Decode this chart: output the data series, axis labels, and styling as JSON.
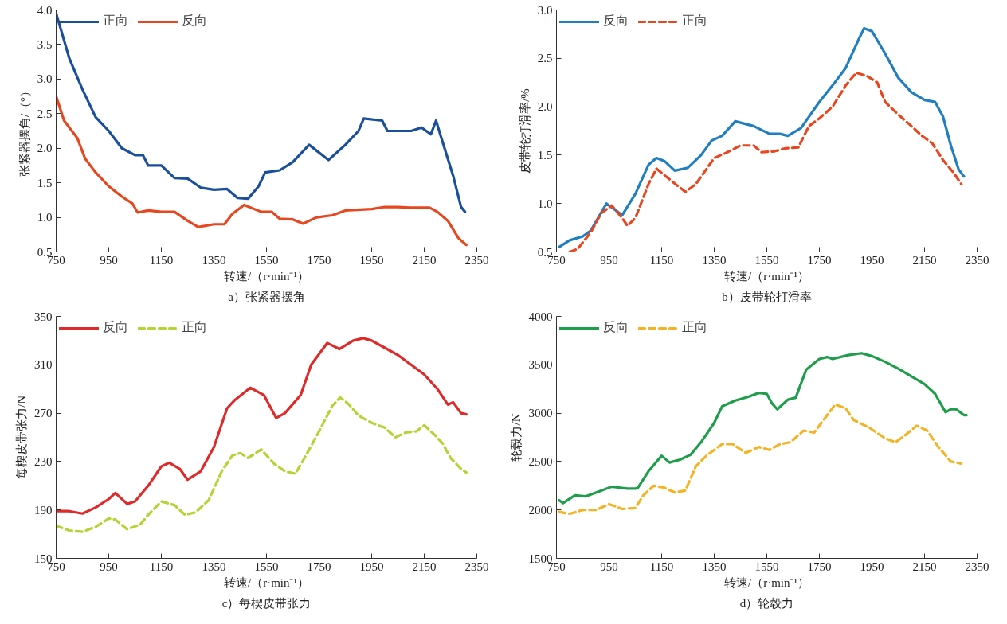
{
  "chart_data": [
    {
      "type": "line",
      "title": "a）张紧器摆角",
      "xlabel": "转速/（r·min⁻¹）",
      "ylabel": "张紧器摆角/（°）",
      "xlim": [
        750,
        2350
      ],
      "xticks": [
        750,
        950,
        1150,
        1350,
        1550,
        1750,
        1950,
        2150,
        2350
      ],
      "ylim": [
        0.5,
        4.0
      ],
      "yticks": [
        {
          "value": 0.5,
          "label": "0.5"
        },
        {
          "value": 1.0,
          "label": "1.0"
        },
        {
          "value": 1.5,
          "label": "1.5"
        },
        {
          "value": 2.0,
          "label": "2.0"
        },
        {
          "value": 2.5,
          "label": "2.5"
        },
        {
          "value": 3.0,
          "label": "3.0"
        },
        {
          "value": 3.5,
          "label": "3.5"
        },
        {
          "value": 4.0,
          "label": "4.0"
        }
      ],
      "grid": false,
      "legend": "top left",
      "series": [
        {
          "name": "正向",
          "color": "#1a4f9c",
          "line_style": "solid",
          "x": [
            750,
            800,
            850,
            900,
            950,
            1000,
            1050,
            1080,
            1100,
            1150,
            1200,
            1250,
            1300,
            1350,
            1400,
            1440,
            1480,
            1520,
            1545,
            1600,
            1650,
            1700,
            1712,
            1786,
            1850,
            1900,
            1920,
            1990,
            2010,
            2060,
            2100,
            2140,
            2175,
            2195,
            2215,
            2260,
            2290,
            2305
          ],
          "values": [
            3.95,
            3.3,
            2.85,
            2.45,
            2.25,
            2.0,
            1.9,
            1.9,
            1.75,
            1.75,
            1.57,
            1.56,
            1.43,
            1.4,
            1.41,
            1.28,
            1.27,
            1.45,
            1.65,
            1.68,
            1.8,
            2.0,
            2.05,
            1.83,
            2.05,
            2.25,
            2.43,
            2.4,
            2.25,
            2.25,
            2.25,
            2.3,
            2.2,
            2.4,
            2.15,
            1.6,
            1.15,
            1.08
          ]
        },
        {
          "name": "反向",
          "color": "#e8461e",
          "line_style": "solid",
          "x": [
            750,
            780,
            830,
            860,
            900,
            950,
            1000,
            1040,
            1060,
            1100,
            1150,
            1200,
            1250,
            1290,
            1350,
            1390,
            1420,
            1465,
            1530,
            1570,
            1600,
            1650,
            1690,
            1740,
            1800,
            1850,
            1950,
            2000,
            2050,
            2100,
            2170,
            2200,
            2240,
            2280,
            2310
          ],
          "values": [
            2.75,
            2.4,
            2.15,
            1.85,
            1.65,
            1.45,
            1.3,
            1.2,
            1.07,
            1.1,
            1.08,
            1.08,
            0.95,
            0.86,
            0.9,
            0.9,
            1.05,
            1.18,
            1.08,
            1.08,
            0.98,
            0.97,
            0.91,
            1.0,
            1.03,
            1.1,
            1.12,
            1.15,
            1.15,
            1.14,
            1.14,
            1.08,
            0.95,
            0.7,
            0.6
          ]
        }
      ]
    },
    {
      "type": "line",
      "title": "b）皮带轮打滑率",
      "xlabel": "转速/（r·min⁻¹）",
      "ylabel": "皮带轮打滑率/%",
      "xlim": [
        750,
        2350
      ],
      "xticks": [
        750,
        950,
        1150,
        1350,
        1550,
        1750,
        1950,
        2150,
        2350
      ],
      "ylim": [
        0.5,
        3.0
      ],
      "yticks": [
        {
          "value": 0.5,
          "label": "0.5"
        },
        {
          "value": 1.0,
          "label": "1.0"
        },
        {
          "value": 1.5,
          "label": "1.5"
        },
        {
          "value": 2.0,
          "label": "2.0"
        },
        {
          "value": 2.5,
          "label": "2.5"
        },
        {
          "value": 3.0,
          "label": "3.0"
        }
      ],
      "grid": false,
      "legend": "top left",
      "series": [
        {
          "name": "反向",
          "color": "#1f7fc0",
          "line_style": "solid",
          "x": [
            760,
            800,
            850,
            880,
            940,
            1000,
            1050,
            1100,
            1130,
            1160,
            1200,
            1250,
            1300,
            1340,
            1380,
            1430,
            1500,
            1560,
            1600,
            1630,
            1680,
            1750,
            1800,
            1850,
            1900,
            1920,
            1950,
            2000,
            2050,
            2100,
            2150,
            2190,
            2220,
            2250,
            2280,
            2300
          ],
          "values": [
            0.55,
            0.62,
            0.66,
            0.72,
            1.0,
            0.88,
            1.1,
            1.4,
            1.47,
            1.44,
            1.34,
            1.37,
            1.5,
            1.65,
            1.7,
            1.85,
            1.8,
            1.72,
            1.72,
            1.7,
            1.78,
            2.05,
            2.22,
            2.4,
            2.7,
            2.81,
            2.78,
            2.55,
            2.3,
            2.15,
            2.07,
            2.05,
            1.9,
            1.6,
            1.35,
            1.28
          ]
        },
        {
          "name": "正向",
          "color": "#e8461e",
          "line_style": "dashed",
          "x": [
            800,
            830,
            880,
            920,
            960,
            1000,
            1020,
            1050,
            1100,
            1130,
            1180,
            1240,
            1280,
            1350,
            1400,
            1450,
            1500,
            1530,
            1580,
            1620,
            1670,
            1710,
            1750,
            1800,
            1850,
            1890,
            1930,
            1970,
            2000,
            2050,
            2100,
            2140,
            2180,
            2220,
            2260,
            2290
          ],
          "values": [
            0.5,
            0.53,
            0.7,
            0.9,
            0.98,
            0.85,
            0.77,
            0.85,
            1.2,
            1.36,
            1.25,
            1.12,
            1.2,
            1.47,
            1.53,
            1.6,
            1.6,
            1.53,
            1.54,
            1.57,
            1.58,
            1.8,
            1.88,
            2.0,
            2.22,
            2.35,
            2.32,
            2.25,
            2.05,
            1.92,
            1.8,
            1.7,
            1.62,
            1.45,
            1.32,
            1.2
          ]
        }
      ]
    },
    {
      "type": "line",
      "title": "c）每楔皮带张力",
      "xlabel": "转速/（r·min⁻¹）",
      "ylabel": "每楔皮带张力/N",
      "xlim": [
        750,
        2350
      ],
      "xticks": [
        750,
        950,
        1150,
        1350,
        1550,
        1750,
        1950,
        2150,
        2350
      ],
      "ylim": [
        150,
        350
      ],
      "yticks": [
        150,
        190,
        230,
        270,
        310,
        350
      ],
      "grid": false,
      "legend": "top left",
      "series": [
        {
          "name": "反向",
          "color": "#e02a2a",
          "line_style": "solid",
          "x": [
            750,
            800,
            850,
            900,
            950,
            975,
            1020,
            1050,
            1100,
            1150,
            1180,
            1220,
            1250,
            1300,
            1350,
            1400,
            1430,
            1488,
            1540,
            1587,
            1620,
            1680,
            1720,
            1781,
            1827,
            1880,
            1918,
            1950,
            2000,
            2050,
            2100,
            2150,
            2200,
            2240,
            2260,
            2290,
            2310
          ],
          "values": [
            189,
            189,
            187,
            192,
            199,
            204,
            195,
            197,
            210,
            226,
            229,
            224,
            215,
            222,
            242,
            274,
            281,
            291,
            285,
            266,
            270,
            285,
            310,
            328,
            323,
            330,
            332,
            330,
            324,
            318,
            310,
            302,
            290,
            277,
            279,
            270,
            269
          ]
        },
        {
          "name": "正向",
          "color": "#b5d334",
          "line_style": "dashed",
          "x": [
            750,
            800,
            850,
            900,
            950,
            975,
            1020,
            1070,
            1100,
            1150,
            1200,
            1240,
            1280,
            1330,
            1380,
            1420,
            1450,
            1480,
            1530,
            1580,
            1620,
            1660,
            1700,
            1750,
            1800,
            1830,
            1860,
            1900,
            1950,
            2000,
            2040,
            2080,
            2120,
            2150,
            2190,
            2220,
            2250,
            2290,
            2310
          ],
          "values": [
            177,
            173,
            172,
            176,
            183,
            182,
            174,
            178,
            186,
            197,
            194,
            186,
            188,
            198,
            222,
            235,
            237,
            233,
            240,
            228,
            222,
            220,
            235,
            255,
            276,
            283,
            278,
            268,
            262,
            258,
            250,
            254,
            255,
            260,
            252,
            245,
            233,
            224,
            221
          ]
        }
      ]
    },
    {
      "type": "line",
      "title": "d）轮毂力",
      "xlabel": "转速/（r·min⁻¹）",
      "ylabel": "轮毂力/N",
      "xlim": [
        750,
        2350
      ],
      "xticks": [
        750,
        950,
        1150,
        1350,
        1550,
        1750,
        1950,
        2150,
        2350
      ],
      "ylim": [
        1500,
        4000
      ],
      "yticks": [
        1500,
        2000,
        2500,
        3000,
        3500,
        4000
      ],
      "grid": false,
      "legend": "top left",
      "series": [
        {
          "name": "反向",
          "color": "#1e9e4a",
          "line_style": "solid",
          "x": [
            760,
            775,
            820,
            860,
            920,
            960,
            1020,
            1050,
            1060,
            1100,
            1150,
            1180,
            1220,
            1260,
            1300,
            1350,
            1380,
            1430,
            1480,
            1520,
            1550,
            1570,
            1590,
            1630,
            1660,
            1700,
            1750,
            1780,
            1800,
            1860,
            1910,
            1950,
            2000,
            2050,
            2100,
            2150,
            2190,
            2230,
            2250,
            2270,
            2300,
            2310
          ],
          "values": [
            2100,
            2070,
            2150,
            2140,
            2200,
            2240,
            2220,
            2220,
            2230,
            2400,
            2560,
            2490,
            2520,
            2570,
            2700,
            2900,
            3070,
            3130,
            3170,
            3210,
            3200,
            3100,
            3040,
            3140,
            3160,
            3450,
            3560,
            3580,
            3560,
            3600,
            3620,
            3590,
            3530,
            3460,
            3380,
            3300,
            3200,
            3010,
            3040,
            3040,
            2980,
            2980
          ]
        },
        {
          "name": "正向",
          "color": "#f5b324",
          "line_style": "dashed",
          "x": [
            760,
            800,
            850,
            900,
            950,
            1000,
            1050,
            1080,
            1120,
            1160,
            1200,
            1240,
            1280,
            1320,
            1380,
            1420,
            1470,
            1520,
            1560,
            1600,
            1640,
            1690,
            1730,
            1780,
            1810,
            1850,
            1880,
            1940,
            2000,
            2040,
            2080,
            2120,
            2160,
            2200,
            2250,
            2290
          ],
          "values": [
            1980,
            1960,
            2000,
            2000,
            2060,
            2010,
            2020,
            2150,
            2250,
            2230,
            2180,
            2200,
            2450,
            2560,
            2680,
            2680,
            2590,
            2650,
            2620,
            2680,
            2700,
            2820,
            2800,
            2980,
            3090,
            3050,
            2930,
            2850,
            2740,
            2700,
            2780,
            2870,
            2820,
            2660,
            2500,
            2480
          ]
        }
      ]
    }
  ]
}
